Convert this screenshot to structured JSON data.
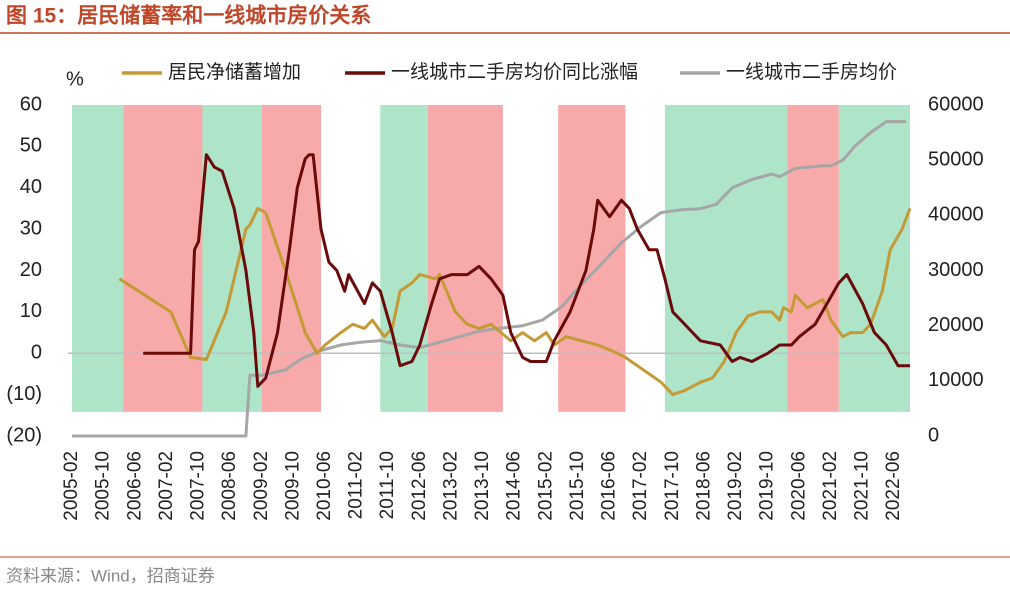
{
  "chart_data": {
    "type": "line",
    "title": "图 15：居民储蓄率和一线城市房价关系",
    "ylabel": "%",
    "source": "资料来源：Wind，招商证券",
    "xlim": [
      "2005-02",
      "2022-10"
    ],
    "xticks": [
      "2005-02",
      "2005-10",
      "2006-06",
      "2007-02",
      "2007-10",
      "2008-06",
      "2009-02",
      "2009-10",
      "2010-06",
      "2011-02",
      "2011-10",
      "2012-06",
      "2013-02",
      "2013-10",
      "2014-06",
      "2015-02",
      "2015-10",
      "2016-06",
      "2017-02",
      "2017-10",
      "2018-06",
      "2019-02",
      "2019-10",
      "2020-06",
      "2021-02",
      "2021-10",
      "2022-06"
    ],
    "ylim": [
      -20,
      60
    ],
    "yticks": [
      {
        "value": -20,
        "label": "(20)"
      },
      {
        "value": -10,
        "label": "(10)"
      },
      0,
      10,
      20,
      30,
      40,
      50,
      60
    ],
    "y2lim": [
      0,
      60000
    ],
    "y2ticks": [
      0,
      10000,
      20000,
      30000,
      40000,
      50000,
      60000
    ],
    "grid": false,
    "legend": "top",
    "regions": [
      {
        "start": "2005-02",
        "end": "2006-03",
        "color": "#aee4c8"
      },
      {
        "start": "2006-03",
        "end": "2007-11",
        "color": "#f8a9a9"
      },
      {
        "start": "2007-11",
        "end": "2009-02",
        "color": "#aee4c8"
      },
      {
        "start": "2009-02",
        "end": "2010-05",
        "color": "#f8a9a9"
      },
      {
        "start": "2011-08",
        "end": "2012-08",
        "color": "#aee4c8"
      },
      {
        "start": "2012-08",
        "end": "2014-03",
        "color": "#f8a9a9"
      },
      {
        "start": "2015-05",
        "end": "2016-10",
        "color": "#f8a9a9"
      },
      {
        "start": "2017-08",
        "end": "2020-03",
        "color": "#aee4c8"
      },
      {
        "start": "2020-03",
        "end": "2021-04",
        "color": "#f8a9a9"
      },
      {
        "start": "2021-04",
        "end": "2022-10",
        "color": "#aee4c8"
      }
    ],
    "series": [
      {
        "name": "居民净储蓄增加",
        "color": "#c49a36",
        "x": [
          "2006-02",
          "2007-03",
          "2007-08",
          "2007-12",
          "2008-05",
          "2008-10",
          "2008-11",
          "2009-01",
          "2009-03",
          "2009-08",
          "2010-01",
          "2010-04",
          "2010-06",
          "2010-10",
          "2011-01",
          "2011-04",
          "2011-06",
          "2011-09",
          "2011-11",
          "2012-01",
          "2012-04",
          "2012-06",
          "2012-10",
          "2012-11",
          "2013-03",
          "2013-06",
          "2013-09",
          "2013-12",
          "2014-05",
          "2014-08",
          "2014-11",
          "2015-02",
          "2015-04",
          "2015-07",
          "2015-11",
          "2016-03",
          "2016-08",
          "2016-10",
          "2017-01",
          "2017-04",
          "2017-07",
          "2017-10",
          "2018-01",
          "2018-05",
          "2018-08",
          "2018-11",
          "2019-02",
          "2019-05",
          "2019-08",
          "2019-11",
          "2020-01",
          "2020-02",
          "2020-04",
          "2020-05",
          "2020-08",
          "2020-12",
          "2021-02",
          "2021-05",
          "2021-07",
          "2021-10",
          "2021-12",
          "2022-03",
          "2022-05",
          "2022-08",
          "2022-10"
        ],
        "values": [
          18,
          10,
          -1,
          -1.5,
          10,
          30,
          31,
          35,
          34,
          20,
          5,
          0,
          2,
          5,
          7,
          6,
          8,
          4,
          6,
          15,
          17,
          19,
          18,
          19,
          10,
          7,
          6,
          7,
          3,
          5,
          3,
          5,
          2,
          4,
          3,
          2,
          0,
          -1,
          -3,
          -5,
          -7,
          -10,
          -9,
          -7,
          -6,
          -2,
          5,
          9,
          10,
          10,
          8,
          11,
          10,
          14,
          11,
          13,
          8,
          4,
          5,
          5,
          7,
          15,
          25,
          30,
          35
        ]
      },
      {
        "name": "一线城市二手房均价同比涨幅",
        "color": "#6a0a0a",
        "x": [
          "2006-08",
          "2007-08",
          "2007-09",
          "2007-10",
          "2007-12",
          "2008-02",
          "2008-04",
          "2008-07",
          "2008-10",
          "2008-12",
          "2009-01",
          "2009-03",
          "2009-06",
          "2009-09",
          "2009-11",
          "2010-01",
          "2010-02",
          "2010-03",
          "2010-05",
          "2010-07",
          "2010-09",
          "2010-11",
          "2010-12",
          "2011-04",
          "2011-06",
          "2011-08",
          "2011-11",
          "2012-01",
          "2012-04",
          "2012-06",
          "2012-09",
          "2012-11",
          "2013-02",
          "2013-06",
          "2013-09",
          "2013-12",
          "2014-03",
          "2014-05",
          "2014-08",
          "2014-10",
          "2015-02",
          "2015-04",
          "2015-08",
          "2015-12",
          "2016-02",
          "2016-03",
          "2016-06",
          "2016-09",
          "2016-11",
          "2017-01",
          "2017-04",
          "2017-06",
          "2017-08",
          "2017-10",
          "2017-12",
          "2018-03",
          "2018-05",
          "2018-10",
          "2019-01",
          "2019-03",
          "2019-06",
          "2019-10",
          "2020-01",
          "2020-04",
          "2020-06",
          "2020-10",
          "2021-01",
          "2021-04",
          "2021-06",
          "2021-10",
          "2022-01",
          "2022-04",
          "2022-07",
          "2022-10"
        ],
        "values": [
          0,
          0,
          25,
          27,
          48,
          45,
          44,
          35,
          20,
          5,
          -8,
          -6,
          5,
          25,
          40,
          47,
          48,
          48,
          30,
          22,
          20,
          15,
          19,
          12,
          17,
          15,
          5,
          -3,
          -2,
          2,
          12,
          18,
          19,
          19,
          21,
          18,
          14,
          5,
          -1,
          -2,
          -2,
          3,
          10,
          20,
          30,
          37,
          33,
          37,
          35,
          30,
          25,
          25,
          18,
          10,
          8,
          5,
          3,
          2,
          -2,
          -1,
          -2,
          0,
          2,
          2,
          4,
          7,
          12,
          17,
          19,
          12,
          5,
          2,
          -3,
          -3
        ]
      },
      {
        "name": "一线城市二手房均价",
        "color": "#a6a6a6",
        "axis": "y2",
        "x": [
          "2005-02",
          "2008-10",
          "2008-11",
          "2009-02",
          "2009-08",
          "2009-12",
          "2010-05",
          "2010-10",
          "2011-03",
          "2011-08",
          "2012-01",
          "2012-06",
          "2012-11",
          "2013-04",
          "2013-09",
          "2014-02",
          "2014-08",
          "2015-01",
          "2015-06",
          "2015-09",
          "2016-01",
          "2016-05",
          "2016-09",
          "2017-02",
          "2017-07",
          "2017-12",
          "2018-05",
          "2018-09",
          "2019-01",
          "2019-06",
          "2019-11",
          "2020-01",
          "2020-05",
          "2020-12",
          "2021-02",
          "2021-05",
          "2021-08",
          "2021-12",
          "2022-04",
          "2022-09"
        ],
        "values": [
          0,
          0,
          11000,
          11000,
          12000,
          14000,
          15500,
          16500,
          17000,
          17300,
          16500,
          16000,
          17000,
          18000,
          19000,
          19500,
          20000,
          21000,
          23500,
          26000,
          29000,
          32000,
          35000,
          38000,
          40500,
          41000,
          41200,
          42000,
          45000,
          46500,
          47500,
          47000,
          48500,
          49000,
          49000,
          50000,
          52500,
          55000,
          57000,
          57000
        ]
      }
    ]
  }
}
